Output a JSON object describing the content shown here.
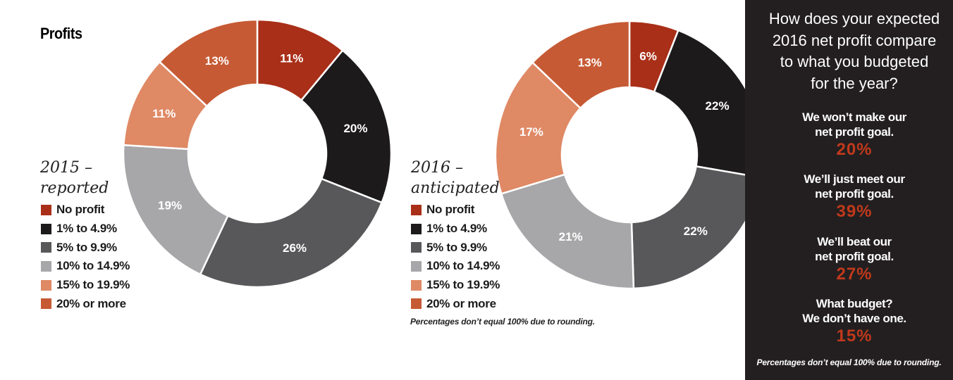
{
  "title": "Profits",
  "colors": {
    "accent": "#b5341a",
    "panel_bg": "#231f20",
    "panel_pct": "#c0391b",
    "categories": [
      "#a92f18",
      "#1c1a1b",
      "#58585a",
      "#a7a7a9",
      "#df8965",
      "#c65a34"
    ]
  },
  "legend": {
    "items": [
      "No profit",
      "1% to 4.9%",
      "5% to 9.9%",
      "10% to 14.9%",
      "15% to 19.9%",
      "20% or more"
    ]
  },
  "chart_data": [
    {
      "type": "pie",
      "label": "2015 – reported",
      "label_lines": [
        "2015 –",
        "reported"
      ],
      "categories": [
        "No profit",
        "1% to 4.9%",
        "5% to 9.9%",
        "10% to 14.9%",
        "15% to 19.9%",
        "20% or more"
      ],
      "values": [
        11,
        20,
        26,
        19,
        11,
        13
      ],
      "data_labels": [
        "11%",
        "20%",
        "26%",
        "19%",
        "11%",
        "13%"
      ]
    },
    {
      "type": "pie",
      "label": "2016 – anticipated",
      "label_lines": [
        "2016 –",
        "anticipated"
      ],
      "categories": [
        "No profit",
        "1% to 4.9%",
        "5% to 9.9%",
        "10% to 14.9%",
        "15% to 19.9%",
        "20% or more"
      ],
      "values": [
        6,
        22,
        22,
        21,
        17,
        13
      ],
      "data_labels": [
        "6%",
        "22%",
        "22%",
        "21%",
        "17%",
        "13%"
      ],
      "note": "Percentages don’t equal 100% due to rounding."
    }
  ],
  "panel": {
    "question_lines": [
      "How does your expected",
      "2016 net profit compare",
      "to what you budgeted",
      "for the year?"
    ],
    "answers": [
      {
        "lines": [
          "We won’t make our",
          "net profit goal."
        ],
        "pct": "20%"
      },
      {
        "lines": [
          "We’ll just meet our",
          "net profit goal."
        ],
        "pct": "39%"
      },
      {
        "lines": [
          "We’ll beat our",
          "net profit goal."
        ],
        "pct": "27%"
      },
      {
        "lines": [
          "What budget?",
          "We don’t have one."
        ],
        "pct": "15%"
      }
    ],
    "note": "Percentages don’t equal 100% due to rounding."
  }
}
